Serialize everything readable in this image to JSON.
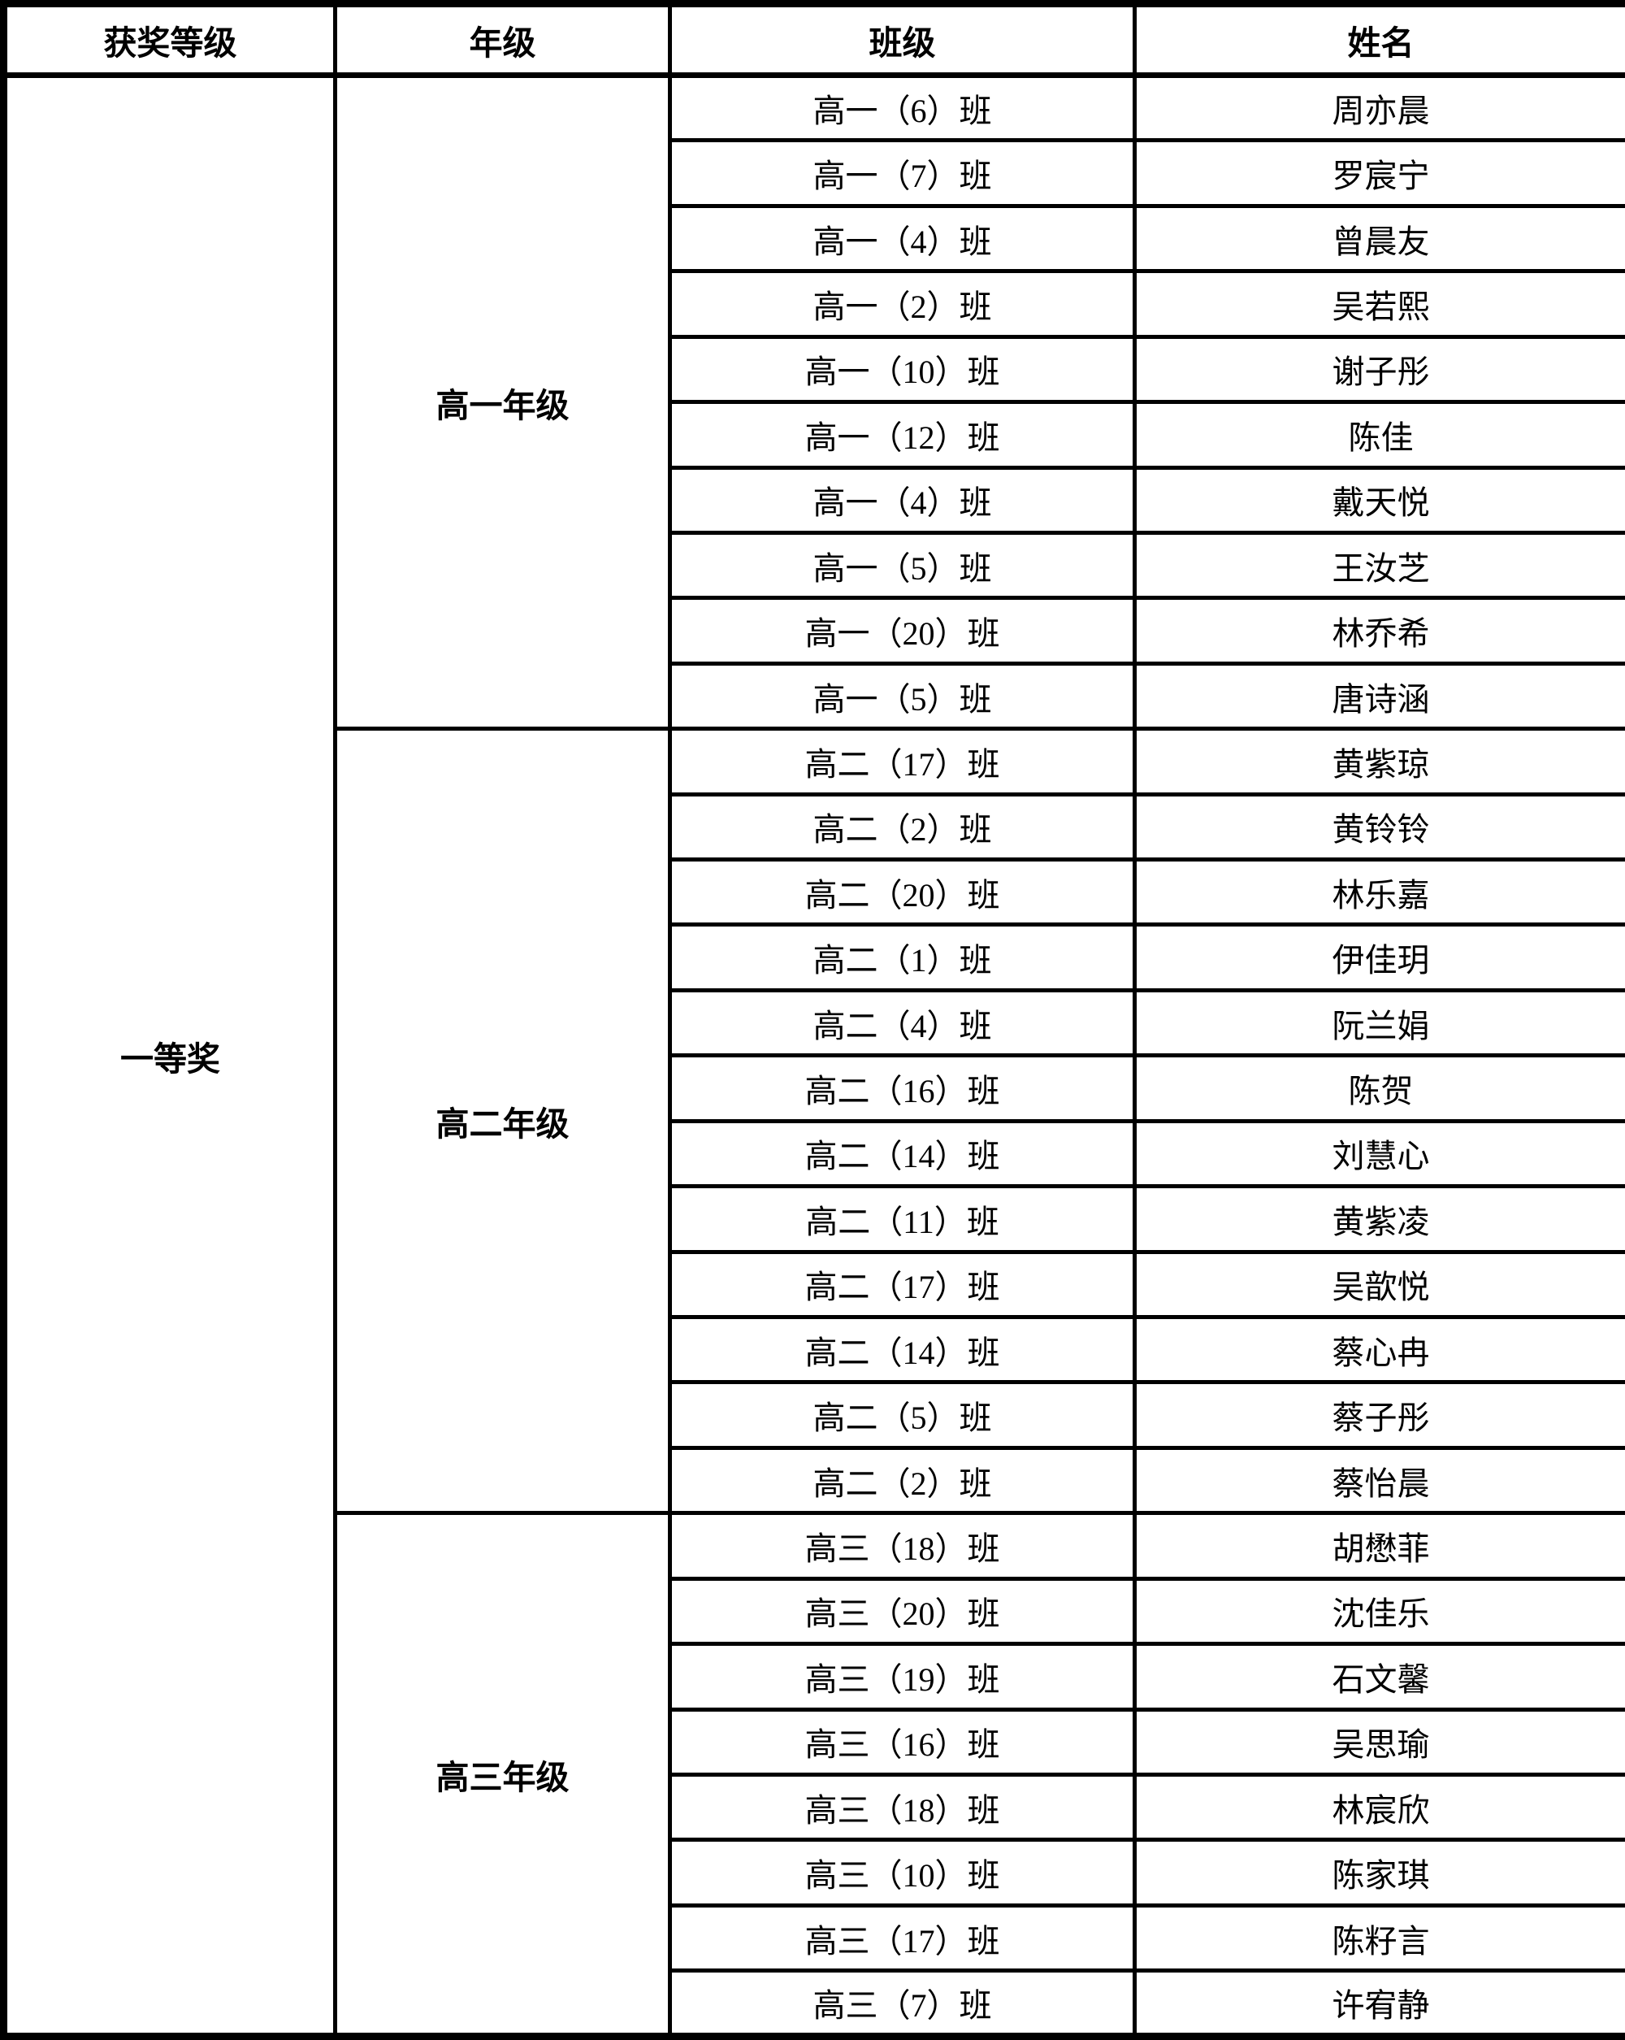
{
  "colors": {
    "border": "#000000",
    "text": "#000000",
    "background": "#ffffff"
  },
  "table": {
    "headers": [
      "获奖等级",
      "年级",
      "班级",
      "姓名"
    ],
    "award_level": "一等奖",
    "sections": [
      {
        "grade": "高一年级",
        "rows": [
          {
            "class_name": "高一（6）班",
            "student": "周亦晨"
          },
          {
            "class_name": "高一（7）班",
            "student": "罗宸宁"
          },
          {
            "class_name": "高一（4）班",
            "student": "曾晨友"
          },
          {
            "class_name": "高一（2）班",
            "student": "吴若熙"
          },
          {
            "class_name": "高一（10）班",
            "student": "谢子彤"
          },
          {
            "class_name": "高一（12）班",
            "student": "陈佳"
          },
          {
            "class_name": "高一（4）班",
            "student": "戴天悦"
          },
          {
            "class_name": "高一（5）班",
            "student": "王汝芝"
          },
          {
            "class_name": "高一（20）班",
            "student": "林乔希"
          },
          {
            "class_name": "高一（5）班",
            "student": "唐诗涵"
          }
        ]
      },
      {
        "grade": "高二年级",
        "rows": [
          {
            "class_name": "高二（17）班",
            "student": "黄紫琼"
          },
          {
            "class_name": "高二（2）班",
            "student": "黄铃铃"
          },
          {
            "class_name": "高二（20）班",
            "student": "林乐嘉"
          },
          {
            "class_name": "高二（1）班",
            "student": "伊佳玥"
          },
          {
            "class_name": "高二（4）班",
            "student": "阮兰娟"
          },
          {
            "class_name": "高二（16）班",
            "student": "陈贺"
          },
          {
            "class_name": "高二（14）班",
            "student": "刘慧心"
          },
          {
            "class_name": "高二（11）班",
            "student": "黄紫凌"
          },
          {
            "class_name": "高二（17）班",
            "student": "吴歆悦"
          },
          {
            "class_name": "高二（14）班",
            "student": "蔡心冉"
          },
          {
            "class_name": "高二（5）班",
            "student": "蔡子彤"
          },
          {
            "class_name": "高二（2）班",
            "student": "蔡怡晨"
          }
        ]
      },
      {
        "grade": "高三年级",
        "rows": [
          {
            "class_name": "高三（18）班",
            "student": "胡懋菲"
          },
          {
            "class_name": "高三（20）班",
            "student": "沈佳乐"
          },
          {
            "class_name": "高三（19）班",
            "student": "石文馨"
          },
          {
            "class_name": "高三（16）班",
            "student": "吴思瑜"
          },
          {
            "class_name": "高三（18）班",
            "student": "林宸欣"
          },
          {
            "class_name": "高三（10）班",
            "student": "陈家琪"
          },
          {
            "class_name": "高三（17）班",
            "student": "陈籽言"
          },
          {
            "class_name": "高三（7）班",
            "student": "许宥静"
          }
        ]
      }
    ]
  }
}
